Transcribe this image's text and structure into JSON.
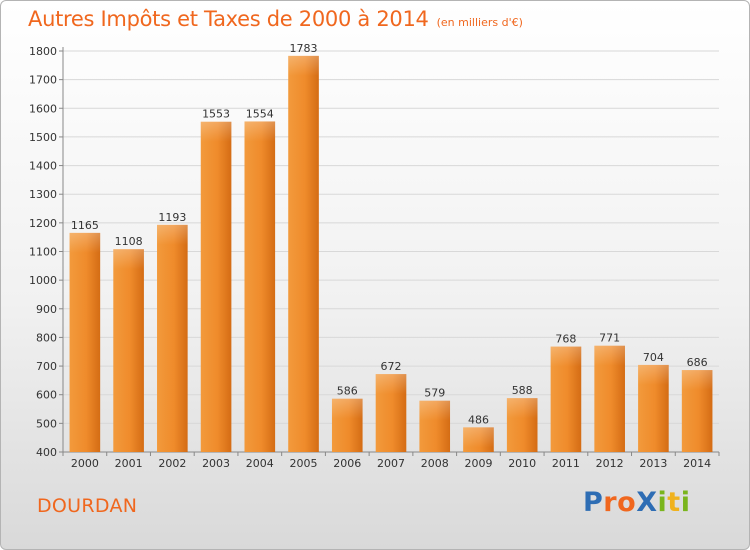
{
  "title": "Autres Impôts et Taxes de 2000 à 2014",
  "subtitle": "(en milliers d'€)",
  "town": "DOURDAN",
  "logo": {
    "text": "ProXiti",
    "colors": [
      "#2e6db4",
      "#f0671e",
      "#f0671e",
      "#2e6db4",
      "#7ab51d",
      "#f0b21e",
      "#7ab51d"
    ]
  },
  "colors": {
    "accent": "#f0671e",
    "bar": "#f08a2a",
    "grid": "#d8d8d8"
  },
  "chart_data": {
    "type": "bar",
    "categories": [
      "2000",
      "2001",
      "2002",
      "2003",
      "2004",
      "2005",
      "2006",
      "2007",
      "2008",
      "2009",
      "2010",
      "2011",
      "2012",
      "2013",
      "2014"
    ],
    "values": [
      1165,
      1108,
      1193,
      1553,
      1554,
      1783,
      586,
      672,
      579,
      486,
      588,
      768,
      771,
      704,
      686
    ],
    "ylim": [
      400,
      1800
    ],
    "yticks": [
      400,
      500,
      600,
      700,
      800,
      900,
      1000,
      1100,
      1200,
      1300,
      1400,
      1500,
      1600,
      1700,
      1800
    ],
    "grid": true,
    "legend": "none"
  }
}
